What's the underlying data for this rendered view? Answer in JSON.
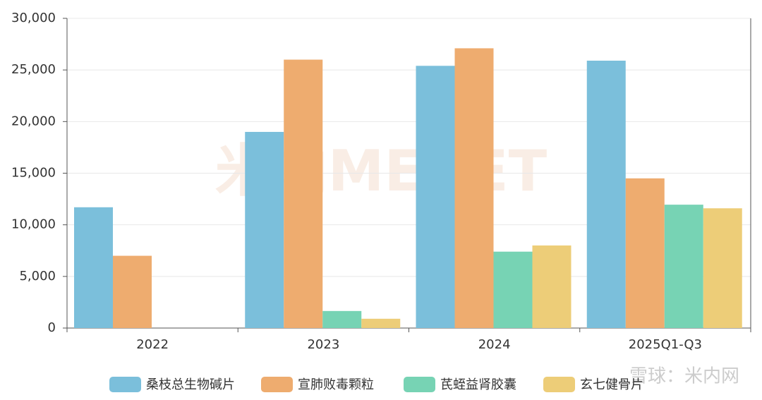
{
  "chart_data": {
    "type": "bar",
    "categories": [
      "2022",
      "2023",
      "2024",
      "2025Q1-Q3"
    ],
    "series": [
      {
        "name": "桑枝总生物碱片",
        "color": "#7bbfdb",
        "values": [
          11700,
          19000,
          25400,
          25900
        ]
      },
      {
        "name": "宣肺败毒颗粒",
        "color": "#eeac6f",
        "values": [
          7000,
          26000,
          27100,
          14500
        ]
      },
      {
        "name": "芪蛭益肾胶囊",
        "color": "#77d3b4",
        "values": [
          null,
          1650,
          7400,
          11950
        ]
      },
      {
        "name": "玄七健骨片",
        "color": "#edcd78",
        "values": [
          null,
          900,
          8000,
          11600
        ]
      }
    ],
    "ylim": [
      0,
      30000
    ],
    "yticks": [
      0,
      {
        "value": 5000,
        "label": "5,000"
      },
      {
        "value": 10000,
        "label": "10,000"
      },
      {
        "value": 15000,
        "label": "15,000"
      },
      {
        "value": 20000,
        "label": "20,000"
      },
      {
        "value": 25000,
        "label": "25,000"
      },
      {
        "value": 30000,
        "label": "30,000"
      }
    ],
    "grid": true,
    "legend": "bottom",
    "watermark": "米内MENET",
    "source_mark": "雪球：米内网"
  }
}
